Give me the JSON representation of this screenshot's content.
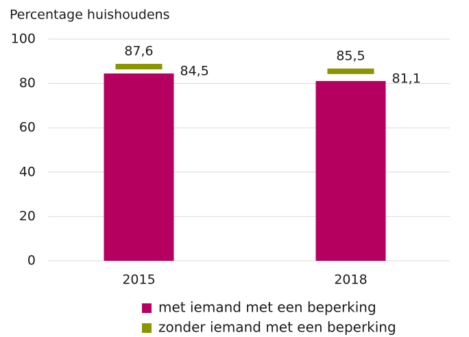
{
  "chart_data": {
    "type": "bar",
    "ylabel": "Percentage huishoudens",
    "categories": [
      "2015",
      "2018"
    ],
    "series": [
      {
        "name": "met iemand met een beperking",
        "color": "#b5005f",
        "values": [
          84.5,
          81.1
        ],
        "value_labels": [
          "84,5",
          "81,1"
        ]
      },
      {
        "name": "zonder iemand met een beperking",
        "color": "#8a9500",
        "style": "marker",
        "values": [
          87.6,
          85.5
        ],
        "value_labels": [
          "87,6",
          "85,5"
        ]
      }
    ],
    "ylim": [
      0,
      100
    ],
    "yticks": [
      0,
      20,
      40,
      60,
      80,
      100
    ],
    "grid": true,
    "legend": "bottom"
  }
}
